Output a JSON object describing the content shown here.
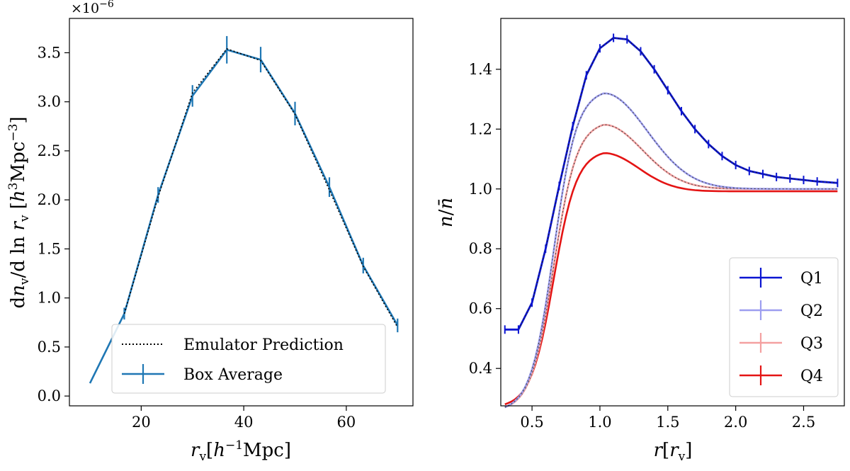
{
  "chart_data": [
    {
      "type": "line",
      "panel": "left",
      "xlabel": "r_v[h^-1 Mpc]",
      "ylabel": "dn_v/d ln r_v [h^3 Mpc^-3]",
      "y_offset_label": "×10",
      "y_offset_exponent": "−6",
      "xlim": [
        6,
        73
      ],
      "ylim": [
        -0.1,
        3.85
      ],
      "xticks": [
        20,
        40,
        60
      ],
      "yticks": [
        0.0,
        0.5,
        1.0,
        1.5,
        2.0,
        2.5,
        3.0,
        3.5
      ],
      "legend_position": "lower-center",
      "series": [
        {
          "name": "Emulator Prediction",
          "style": "dotted",
          "color": "#000000",
          "x": [
            16.7,
            23.3,
            30.0,
            36.7,
            43.3,
            50.0,
            56.7,
            63.3,
            70.0
          ],
          "y": [
            0.84,
            2.03,
            3.09,
            3.54,
            3.42,
            2.87,
            2.1,
            1.32,
            0.7
          ]
        },
        {
          "name": "Box Average",
          "style": "solid",
          "color": "#1f77b4",
          "x": [
            10.0,
            16.7,
            23.3,
            30.0,
            36.7,
            43.3,
            50.0,
            56.7,
            63.3,
            70.0
          ],
          "y": [
            0.13,
            0.84,
            2.05,
            3.06,
            3.53,
            3.43,
            2.88,
            2.13,
            1.33,
            0.72
          ],
          "yerr": [
            0.0,
            0.06,
            0.08,
            0.11,
            0.14,
            0.13,
            0.12,
            0.1,
            0.08,
            0.07
          ]
        }
      ]
    },
    {
      "type": "line",
      "panel": "right",
      "xlabel": "r[r_v]",
      "ylabel": "n/n̄",
      "xlim": [
        0.27,
        2.8
      ],
      "ylim": [
        0.275,
        1.57
      ],
      "xticks": [
        0.5,
        1.0,
        1.5,
        2.0,
        2.5
      ],
      "yticks": [
        0.4,
        0.6,
        0.8,
        1.0,
        1.2,
        1.4
      ],
      "legend_position": "lower-right",
      "series": [
        {
          "name": "Q1",
          "color": "#0a14d2",
          "peak": 1.505,
          "x": [
            0.3,
            0.4,
            0.5,
            0.6,
            0.7,
            0.8,
            0.9,
            1.0,
            1.1,
            1.2,
            1.3,
            1.4,
            1.5,
            1.6,
            1.7,
            1.8,
            1.9,
            2.0,
            2.1,
            2.2,
            2.3,
            2.4,
            2.5,
            2.6,
            2.75
          ],
          "y": [
            0.53,
            0.53,
            0.62,
            0.8,
            1.01,
            1.21,
            1.38,
            1.47,
            1.505,
            1.5,
            1.46,
            1.4,
            1.33,
            1.26,
            1.2,
            1.15,
            1.11,
            1.08,
            1.06,
            1.05,
            1.04,
            1.035,
            1.03,
            1.025,
            1.02
          ]
        },
        {
          "name": "Q2",
          "color": "#9d9ef0",
          "peak": 1.32
        },
        {
          "name": "Q3",
          "color": "#f4a0a0",
          "peak": 1.215
        },
        {
          "name": "Q4",
          "color": "#e41414",
          "peak": 1.12
        }
      ]
    }
  ]
}
